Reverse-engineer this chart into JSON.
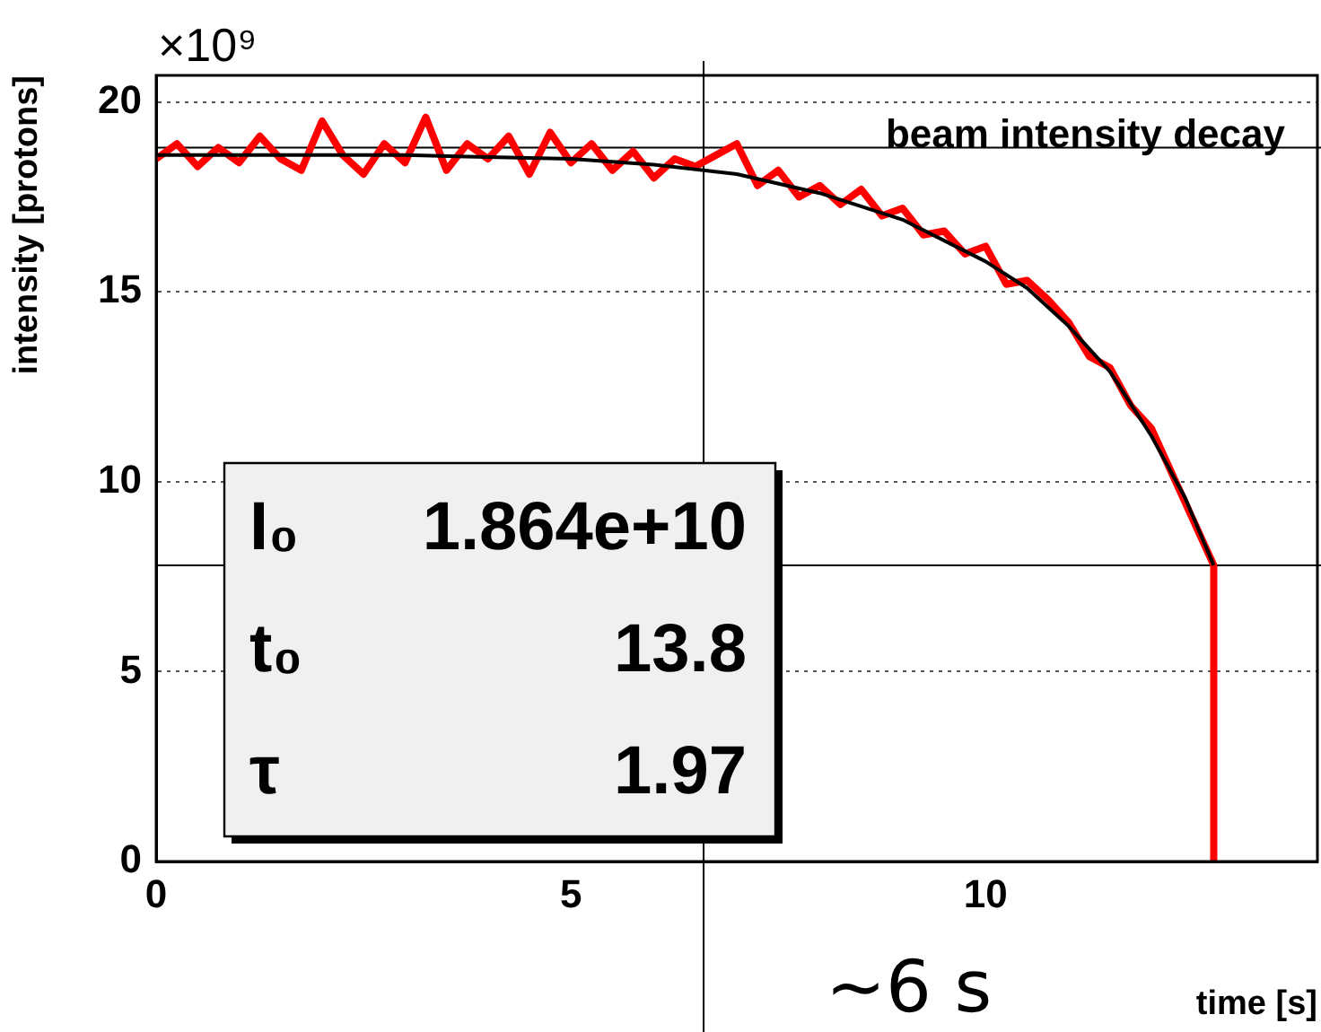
{
  "chart_data": {
    "type": "line",
    "title": "beam intensity decay",
    "xlabel": "time [s]",
    "ylabel": "intensity [protons]",
    "annotations": [
      "×10⁹",
      "I₀",
      "1.864e+10",
      "t₀",
      "13.8",
      "τ",
      "1.97"
    ],
    "xlim": [
      0,
      14
    ],
    "xticks": [
      0,
      5,
      10
    ],
    "ylim": [
      0,
      20.7
    ],
    "yticks": [
      0,
      5,
      10,
      15,
      20
    ],
    "grid": "y",
    "legend": false,
    "marker": "none",
    "line_style": "solid",
    "ref_lines": [
      {
        "axis": "x",
        "value": 6.6,
        "label": "~6 s"
      },
      {
        "axis": "y",
        "value": 18.8
      },
      {
        "axis": "y",
        "value": 7.8
      }
    ],
    "series": [
      {
        "color": "#ff0000",
        "x": [
          0,
          0.25,
          0.5,
          0.75,
          1,
          1.25,
          1.5,
          1.75,
          2,
          2.25,
          2.5,
          2.75,
          3,
          3.25,
          3.5,
          3.75,
          4,
          4.25,
          4.5,
          4.75,
          5,
          5.25,
          5.5,
          5.75,
          6,
          6.25,
          6.5,
          6.75,
          7,
          7.25,
          7.5,
          7.75,
          8,
          8.25,
          8.5,
          8.75,
          9,
          9.25,
          9.5,
          9.75,
          10,
          10.25,
          10.5,
          10.75,
          11,
          11.25,
          11.5,
          11.75,
          12,
          12.25,
          12.5,
          12.75,
          12.75
        ],
        "values": [
          18.5,
          18.9,
          18.3,
          18.8,
          18.4,
          19.1,
          18.5,
          18.2,
          19.5,
          18.6,
          18.1,
          18.9,
          18.4,
          19.6,
          18.2,
          18.9,
          18.5,
          19.1,
          18.1,
          19.2,
          18.4,
          18.9,
          18.2,
          18.7,
          18,
          18.5,
          18.3,
          18.6,
          18.9,
          17.8,
          18.2,
          17.5,
          17.8,
          17.3,
          17.7,
          17,
          17.2,
          16.5,
          16.6,
          16,
          16.2,
          15.2,
          15.3,
          14.8,
          14.2,
          13.3,
          13,
          12,
          11.4,
          10.2,
          9,
          7.8,
          0
        ]
      },
      {
        "color": "#000000",
        "x": [
          0,
          1,
          2,
          3,
          4,
          5,
          6,
          7,
          8,
          9,
          10,
          10.5,
          11,
          11.5,
          12,
          12.4,
          12.75
        ],
        "values": [
          18.6,
          18.6,
          18.6,
          18.6,
          18.55,
          18.5,
          18.35,
          18.1,
          17.6,
          16.9,
          15.8,
          15.1,
          14.1,
          12.9,
          11.2,
          9.6,
          7.8
        ]
      }
    ]
  }
}
